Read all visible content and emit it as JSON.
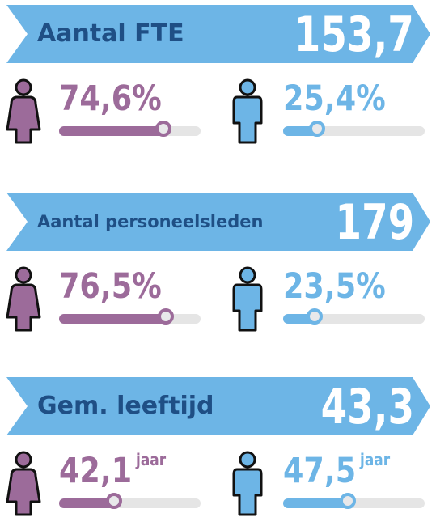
{
  "colors": {
    "banner": "#6db5e6",
    "banner_title": "#1f4f85",
    "female": "#9c6b9a",
    "male": "#6db5e6",
    "track": "#e5e5e5"
  },
  "icons": {
    "female": "female-person-icon",
    "male": "male-person-icon"
  },
  "sections": [
    {
      "title": "Aantal FTE",
      "value": "153,7",
      "female": {
        "label": "74,6%",
        "level": 0.746,
        "unit": ""
      },
      "male": {
        "label": "25,4%",
        "level": 0.254,
        "unit": ""
      }
    },
    {
      "title": "Aantal personeelsleden",
      "value": "179",
      "female": {
        "label": "76,5%",
        "level": 0.765,
        "unit": ""
      },
      "male": {
        "label": "23,5%",
        "level": 0.235,
        "unit": ""
      }
    },
    {
      "title": "Gem. leeftijd",
      "value": "43,3",
      "female": {
        "label": "42,1",
        "level": 0.4,
        "unit": "jaar"
      },
      "male": {
        "label": "47,5",
        "level": 0.47,
        "unit": "jaar"
      }
    }
  ]
}
